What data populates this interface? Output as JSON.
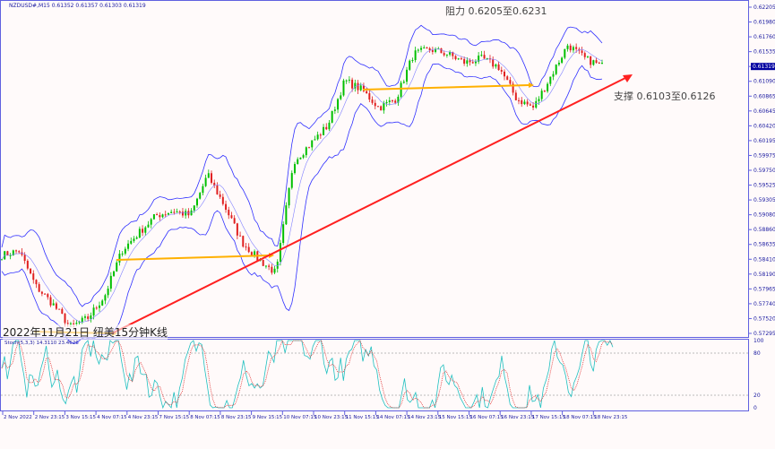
{
  "header": {
    "symbol_info": "NZDUSD#,M15  0.61352 0.61357 0.61303 0.61319"
  },
  "caption": "2022年11月21日 纽美15分钟K线",
  "annotations": {
    "resistance": "阻力 0.6205至0.6231",
    "support": "支撑 0.6103至0.6126"
  },
  "indicator": {
    "label": "Stoch(5,3,3) 14.3110 23.4626",
    "levels": [
      "100",
      "80",
      "20",
      "0"
    ]
  },
  "colors": {
    "up": "#00c000",
    "down": "#e02020",
    "bands": "#3030ff",
    "trend": "#ff2020",
    "level_lines": "#ffb000",
    "axis": "#6060e0",
    "current_price_bg": "#0000a0",
    "stoch_main": "#20c0c0",
    "stoch_signal": "#e03030"
  },
  "chart_data": {
    "type": "candlestick",
    "symbol": "NZDUSD#",
    "timeframe": "M15",
    "y_ticks": [
      "0.62205",
      "0.61980",
      "0.61760",
      "0.61535",
      "0.61319",
      "0.61090",
      "0.60865",
      "0.60645",
      "0.60420",
      "0.60195",
      "0.59975",
      "0.59750",
      "0.59525",
      "0.59305",
      "0.59080",
      "0.58860",
      "0.58635",
      "0.58410",
      "0.58190",
      "0.57965",
      "0.57740",
      "0.57520",
      "0.57295"
    ],
    "current_price": "0.61319",
    "ylim": [
      0.57295,
      0.62205
    ],
    "x_ticks": [
      "2 Nov 2022",
      "2 Nov 23:15",
      "3 Nov 15:15",
      "4 Nov 07:15",
      "4 Nov 23:15",
      "7 Nov 15:15",
      "8 Nov 07:15",
      "8 Nov 23:15",
      "9 Nov 15:15",
      "10 Nov 07:15",
      "10 Nov 23:15",
      "11 Nov 15:15",
      "14 Nov 07:15",
      "14 Nov 23:15",
      "15 Nov 15:15",
      "16 Nov 07:15",
      "16 Nov 23:15",
      "17 Nov 15:15",
      "18 Nov 07:15",
      "18 Nov 23:15"
    ],
    "approx_closes": [
      0.5847,
      0.5854,
      0.58,
      0.5773,
      0.5739,
      0.5752,
      0.5786,
      0.5854,
      0.5881,
      0.5907,
      0.5914,
      0.5907,
      0.5968,
      0.5921,
      0.5867,
      0.584,
      0.582,
      0.5988,
      0.6015,
      0.6042,
      0.611,
      0.6096,
      0.6069,
      0.6083,
      0.615,
      0.6157,
      0.615,
      0.6137,
      0.6143,
      0.613,
      0.6083,
      0.6069,
      0.6116,
      0.6164,
      0.6143,
      0.6132
    ],
    "stoch_levels": [
      80,
      20
    ],
    "stoch_ylim": [
      0,
      100
    ]
  }
}
